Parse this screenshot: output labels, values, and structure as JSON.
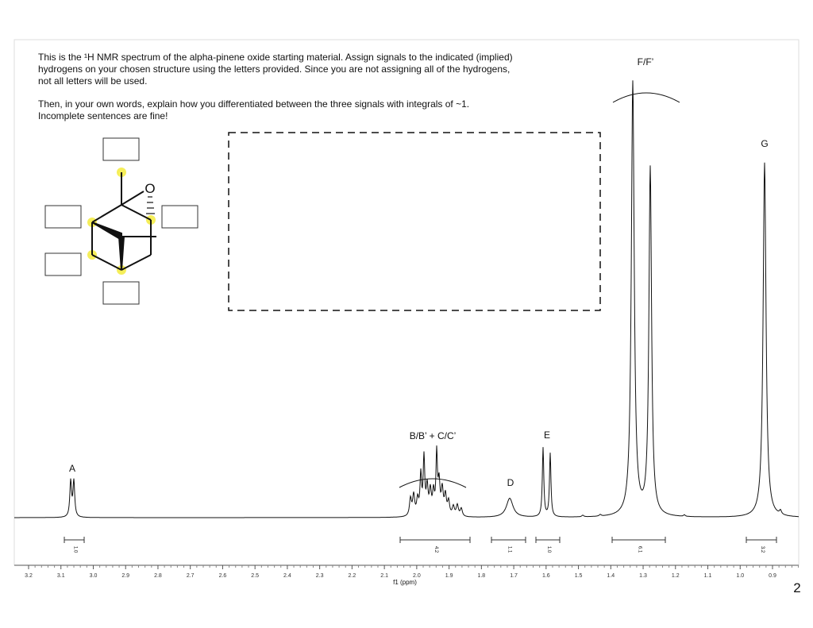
{
  "instructions": {
    "paragraph1": [
      "This is the ¹H NMR spectrum of the alpha-pinene oxide starting material. Assign signals to the indicated (implied)",
      "hydrogens on your chosen structure using the letters provided. Since you are not assigning all of the hydrogens,",
      "not all letters will be used."
    ],
    "paragraph2": [
      "Then, in your own words, explain how you differentiated between the three signals with integrals of ~1.",
      "Incomplete sentences are fine!"
    ]
  },
  "structure": {
    "atom_label": "O"
  },
  "peak_labels": [
    "A",
    "B/B’ + C/C’",
    "D",
    "E",
    "F/F’",
    "G"
  ],
  "integrals": [
    "1.0",
    "4.2",
    "1.1",
    "1.0",
    "6.1",
    "3.2"
  ],
  "axis": {
    "ticks": [
      "3.2",
      "3.1",
      "3.0",
      "2.9",
      "2.8",
      "2.7",
      "2.6",
      "2.5",
      "2.4",
      "2.3",
      "2.2",
      "2.1",
      "2.0",
      "1.9",
      "1.8",
      "1.7",
      "1.6",
      "1.5",
      "1.4",
      "1.3",
      "1.2",
      "1.1",
      "1.0",
      "0.9"
    ],
    "label": "f1 (ppm)"
  },
  "page_number": "2"
}
